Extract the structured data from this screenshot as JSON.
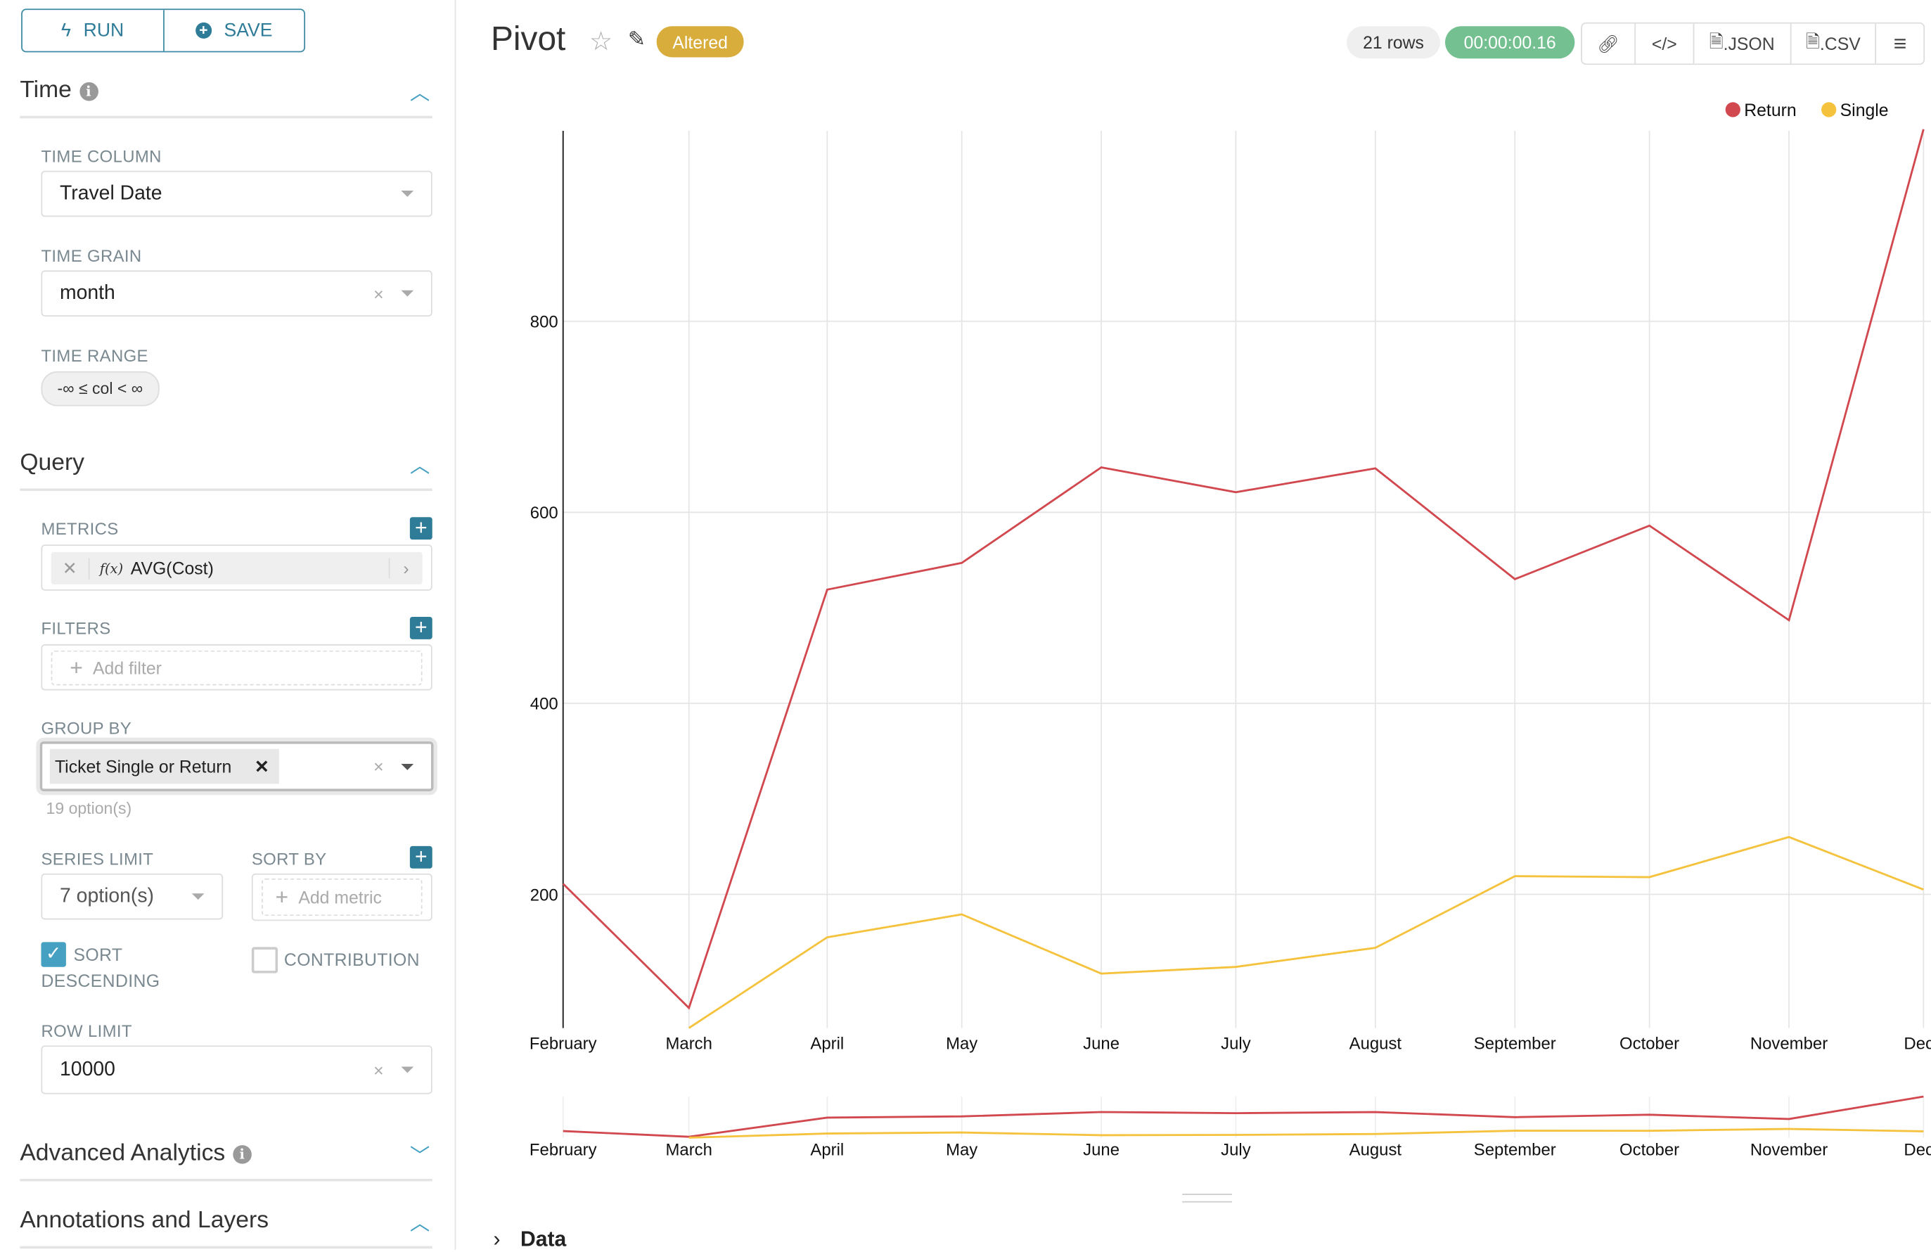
{
  "sidebar": {
    "run_label": "RUN",
    "save_label": "SAVE",
    "time_section": {
      "title": "Time",
      "time_column": {
        "label": "TIME COLUMN",
        "value": "Travel Date"
      },
      "time_grain": {
        "label": "TIME GRAIN",
        "value": "month"
      },
      "time_range": {
        "label": "TIME RANGE",
        "value": "-∞ ≤ col < ∞"
      }
    },
    "query_section": {
      "title": "Query",
      "metrics": {
        "label": "METRICS",
        "items": [
          {
            "func_icon": "f(x)",
            "label": "AVG(Cost)"
          }
        ]
      },
      "filters": {
        "label": "FILTERS",
        "placeholder": "Add filter"
      },
      "group_by": {
        "label": "GROUP BY",
        "tags": [
          "Ticket Single or Return"
        ],
        "hint": "19 option(s)"
      },
      "series_limit": {
        "label": "SERIES LIMIT",
        "placeholder": "7 option(s)"
      },
      "sort_by": {
        "label": "SORT BY",
        "placeholder": "Add metric"
      },
      "sort_descending": {
        "label_line1": "SORT",
        "label_line2": "DESCENDING",
        "checked": true
      },
      "contribution": {
        "label": "CONTRIBUTION",
        "checked": false
      },
      "row_limit": {
        "label": "ROW LIMIT",
        "value": "10000"
      }
    },
    "advanced_analytics": {
      "title": "Advanced Analytics",
      "expanded": false
    },
    "annotations": {
      "title": "Annotations and Layers",
      "expanded": true
    }
  },
  "header": {
    "title": "Pivot",
    "altered_badge": "Altered",
    "rows": "21 rows",
    "timer": "00:00:00.16",
    "json_label": ".JSON",
    "csv_label": ".CSV"
  },
  "data_panel": {
    "label": "Data"
  },
  "colors": {
    "accent": "#2f7c99",
    "return": "#d1484f",
    "single": "#f4c23c",
    "timer": "#74c090",
    "altered": "#d8ad3c"
  },
  "chart_data": {
    "type": "line",
    "categories": [
      "February",
      "March",
      "April",
      "May",
      "June",
      "July",
      "August",
      "September",
      "October",
      "November",
      "December"
    ],
    "tick_labels": [
      "February",
      "March",
      "April",
      "May",
      "June",
      "July",
      "August",
      "September",
      "October",
      "November",
      "Dece"
    ],
    "series": [
      {
        "name": "Return",
        "values": [
          211,
          81,
          519,
          547,
          647,
          621,
          646,
          530,
          586,
          487,
          1001
        ]
      },
      {
        "name": "Single",
        "values": [
          null,
          60,
          155,
          179,
          117,
          124,
          144,
          219,
          218,
          260,
          205
        ]
      }
    ],
    "yticks": [
      200,
      400,
      600,
      800
    ],
    "ylim": [
      60,
      1001
    ],
    "grid": true,
    "legend": "top-right",
    "brush": true
  }
}
